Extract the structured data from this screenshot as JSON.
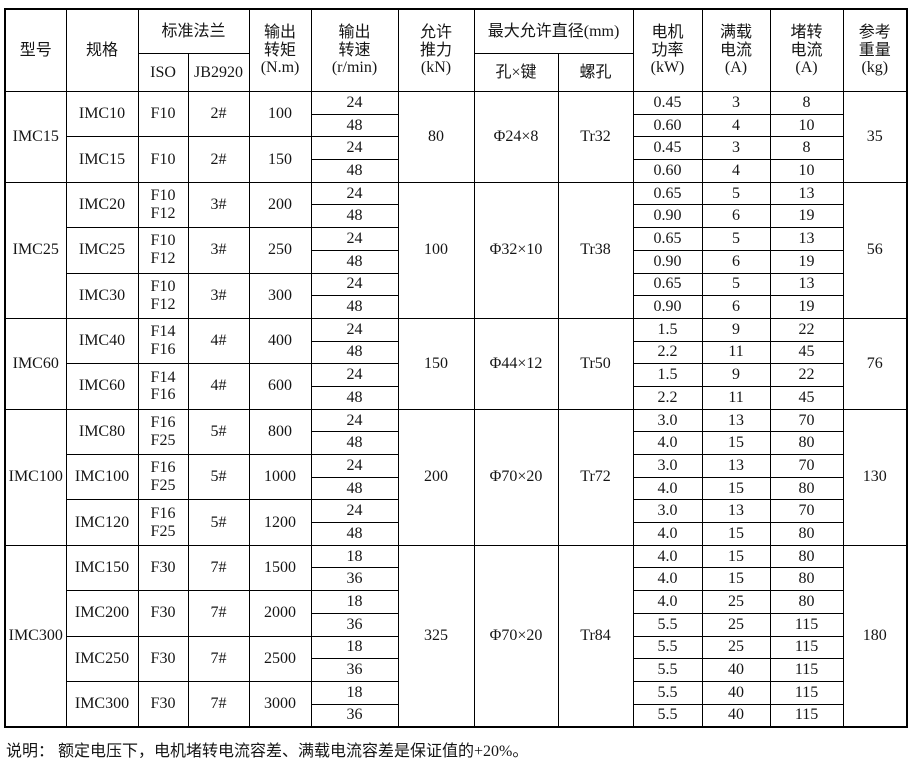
{
  "table": {
    "border_color": "#000000",
    "header": {
      "model": "型号",
      "spec": "规格",
      "flange": "标准法兰",
      "iso": "ISO",
      "jb": "JB2920",
      "torque": "输出\n转矩\n(N.m)",
      "speed": "输出\n转速\n(r/min)",
      "thrust": "允许\n推力\n(kN)",
      "diameter": "最大允许直径(mm)",
      "hole_key": "孔×键",
      "screw": "螺孔",
      "power": "电机\n功率\n(kW)",
      "full_load": "满载\n电流\n(A)",
      "locked": "堵转\n电流\n(A)",
      "weight": "参考\n重量\n(kg)"
    },
    "blocks": [
      {
        "model": "IMC15",
        "thrust": "80",
        "hole_key": "Φ24×8",
        "screw": "Tr32",
        "weight": "35",
        "specs": [
          {
            "spec": "IMC10",
            "iso": "F10",
            "jb": "2#",
            "torque": "100",
            "rows": [
              {
                "speed": "24",
                "power": "0.45",
                "full": "3",
                "locked": "8"
              },
              {
                "speed": "48",
                "power": "0.60",
                "full": "4",
                "locked": "10"
              }
            ]
          },
          {
            "spec": "IMC15",
            "iso": "F10",
            "jb": "2#",
            "torque": "150",
            "rows": [
              {
                "speed": "24",
                "power": "0.45",
                "full": "3",
                "locked": "8"
              },
              {
                "speed": "48",
                "power": "0.60",
                "full": "4",
                "locked": "10"
              }
            ]
          }
        ]
      },
      {
        "model": "IMC25",
        "thrust": "100",
        "hole_key": "Φ32×10",
        "screw": "Tr38",
        "weight": "56",
        "specs": [
          {
            "spec": "IMC20",
            "iso": "F10\nF12",
            "jb": "3#",
            "torque": "200",
            "rows": [
              {
                "speed": "24",
                "power": "0.65",
                "full": "5",
                "locked": "13"
              },
              {
                "speed": "48",
                "power": "0.90",
                "full": "6",
                "locked": "19"
              }
            ]
          },
          {
            "spec": "IMC25",
            "iso": "F10\nF12",
            "jb": "3#",
            "torque": "250",
            "rows": [
              {
                "speed": "24",
                "power": "0.65",
                "full": "5",
                "locked": "13"
              },
              {
                "speed": "48",
                "power": "0.90",
                "full": "6",
                "locked": "19"
              }
            ]
          },
          {
            "spec": "IMC30",
            "iso": "F10\nF12",
            "jb": "3#",
            "torque": "300",
            "rows": [
              {
                "speed": "24",
                "power": "0.65",
                "full": "5",
                "locked": "13"
              },
              {
                "speed": "48",
                "power": "0.90",
                "full": "6",
                "locked": "19"
              }
            ]
          }
        ]
      },
      {
        "model": "IMC60",
        "thrust": "150",
        "hole_key": "Φ44×12",
        "screw": "Tr50",
        "weight": "76",
        "specs": [
          {
            "spec": "IMC40",
            "iso": "F14\nF16",
            "jb": "4#",
            "torque": "400",
            "rows": [
              {
                "speed": "24",
                "power": "1.5",
                "full": "9",
                "locked": "22"
              },
              {
                "speed": "48",
                "power": "2.2",
                "full": "11",
                "locked": "45"
              }
            ]
          },
          {
            "spec": "IMC60",
            "iso": "F14\nF16",
            "jb": "4#",
            "torque": "600",
            "rows": [
              {
                "speed": "24",
                "power": "1.5",
                "full": "9",
                "locked": "22"
              },
              {
                "speed": "48",
                "power": "2.2",
                "full": "11",
                "locked": "45"
              }
            ]
          }
        ]
      },
      {
        "model": "IMC100",
        "thrust": "200",
        "hole_key": "Φ70×20",
        "screw": "Tr72",
        "weight": "130",
        "specs": [
          {
            "spec": "IMC80",
            "iso": "F16\nF25",
            "jb": "5#",
            "torque": "800",
            "rows": [
              {
                "speed": "24",
                "power": "3.0",
                "full": "13",
                "locked": "70"
              },
              {
                "speed": "48",
                "power": "4.0",
                "full": "15",
                "locked": "80"
              }
            ]
          },
          {
            "spec": "IMC100",
            "iso": "F16\nF25",
            "jb": "5#",
            "torque": "1000",
            "rows": [
              {
                "speed": "24",
                "power": "3.0",
                "full": "13",
                "locked": "70"
              },
              {
                "speed": "48",
                "power": "4.0",
                "full": "15",
                "locked": "80"
              }
            ]
          },
          {
            "spec": "IMC120",
            "iso": "F16\nF25",
            "jb": "5#",
            "torque": "1200",
            "rows": [
              {
                "speed": "24",
                "power": "3.0",
                "full": "13",
                "locked": "70"
              },
              {
                "speed": "48",
                "power": "4.0",
                "full": "15",
                "locked": "80"
              }
            ]
          }
        ]
      },
      {
        "model": "IMC300",
        "thrust": "325",
        "hole_key": "Φ70×20",
        "screw": "Tr84",
        "weight": "180",
        "specs": [
          {
            "spec": "IMC150",
            "iso": "F30",
            "jb": "7#",
            "torque": "1500",
            "rows": [
              {
                "speed": "18",
                "power": "4.0",
                "full": "15",
                "locked": "80"
              },
              {
                "speed": "36",
                "power": "4.0",
                "full": "15",
                "locked": "80"
              }
            ]
          },
          {
            "spec": "IMC200",
            "iso": "F30",
            "jb": "7#",
            "torque": "2000",
            "rows": [
              {
                "speed": "18",
                "power": "4.0",
                "full": "25",
                "locked": "80"
              },
              {
                "speed": "36",
                "power": "5.5",
                "full": "25",
                "locked": "115"
              }
            ]
          },
          {
            "spec": "IMC250",
            "iso": "F30",
            "jb": "7#",
            "torque": "2500",
            "rows": [
              {
                "speed": "18",
                "power": "5.5",
                "full": "25",
                "locked": "115"
              },
              {
                "speed": "36",
                "power": "5.5",
                "full": "40",
                "locked": "115"
              }
            ]
          },
          {
            "spec": "IMC300",
            "iso": "F30",
            "jb": "7#",
            "torque": "3000",
            "rows": [
              {
                "speed": "18",
                "power": "5.5",
                "full": "40",
                "locked": "115"
              },
              {
                "speed": "36",
                "power": "5.5",
                "full": "40",
                "locked": "115"
              }
            ]
          }
        ]
      }
    ]
  },
  "footer": {
    "note": "说明： 额定电压下，电机堵转电流容差、满载电流容差是保证值的+20%。"
  }
}
